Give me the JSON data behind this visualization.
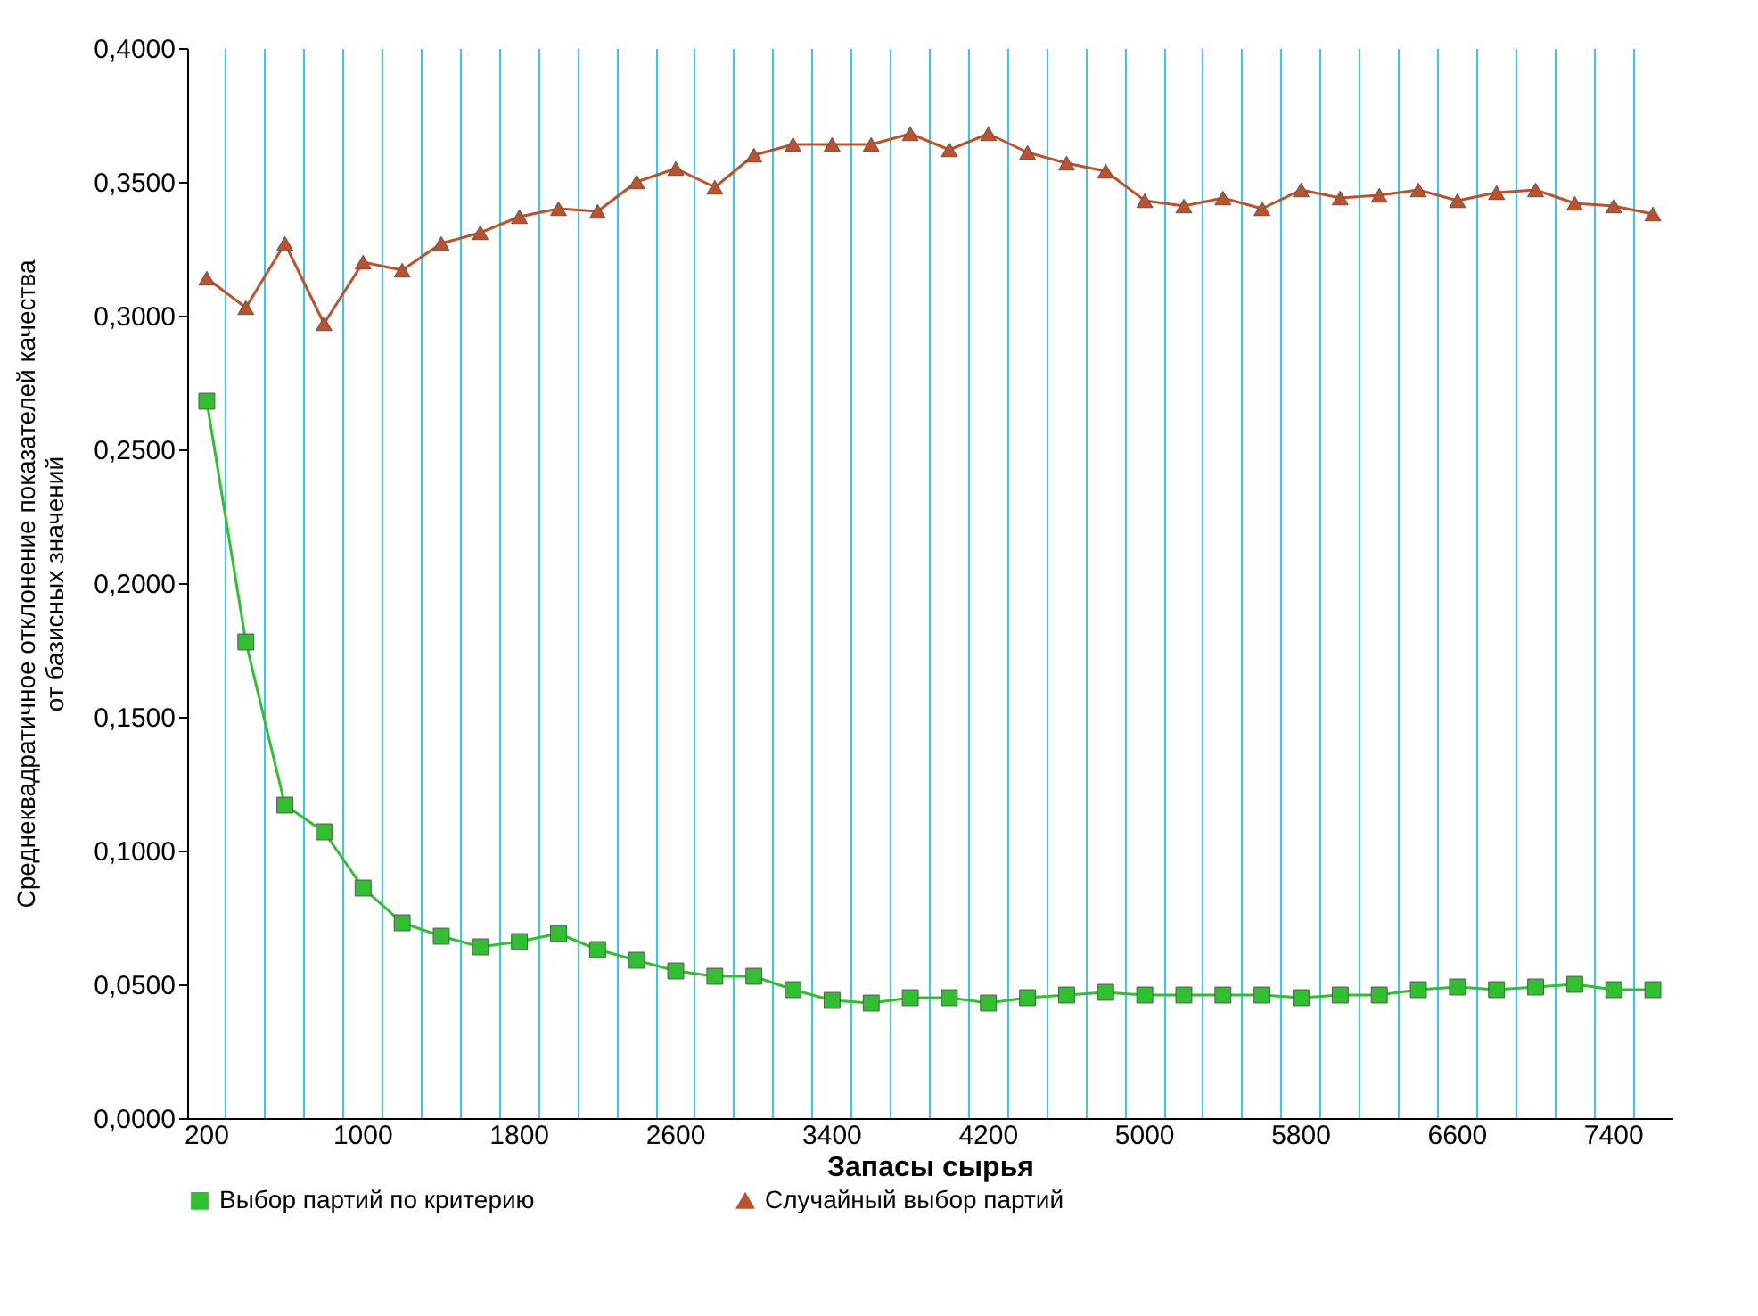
{
  "chart_data": {
    "type": "line",
    "xlabel": "Запасы сырья",
    "ylabel": "Среднеквадратичное отклонение показателей качества\nот базисных значений",
    "categories": [
      "200",
      null,
      null,
      null,
      "1000",
      null,
      null,
      null,
      "1800",
      null,
      null,
      null,
      "2600",
      null,
      null,
      null,
      "3400",
      null,
      null,
      null,
      "4200",
      null,
      null,
      null,
      "5000",
      null,
      null,
      null,
      "5800",
      null,
      null,
      null,
      "6600",
      null,
      null,
      null,
      "7400",
      null
    ],
    "ylim": [
      0,
      0.4
    ],
    "yticks": [
      {
        "value": 0,
        "label": "0,0000"
      },
      {
        "value": 0.05,
        "label": "0,0500"
      },
      {
        "value": 0.1,
        "label": "0,1000"
      },
      {
        "value": 0.15,
        "label": "0,1500"
      },
      {
        "value": 0.2,
        "label": "0,2000"
      },
      {
        "value": 0.25,
        "label": "0,2500"
      },
      {
        "value": 0.3,
        "label": "0,3000"
      },
      {
        "value": 0.35,
        "label": "0,3500"
      },
      {
        "value": 0.4,
        "label": "0,4000"
      }
    ],
    "grid": "x",
    "legend": "bottom",
    "line_style": "solid",
    "series": [
      {
        "name": "Выбор партий по критерию",
        "color": "#2fbf2f",
        "marker": "square",
        "values": [
          0.268,
          0.178,
          0.117,
          0.107,
          0.086,
          0.073,
          0.068,
          0.064,
          0.066,
          0.069,
          0.063,
          0.059,
          0.055,
          0.053,
          0.053,
          0.048,
          0.044,
          0.043,
          0.045,
          0.045,
          0.043,
          0.045,
          0.046,
          0.047,
          0.046,
          0.046,
          0.046,
          0.046,
          0.045,
          0.046,
          0.046,
          0.048,
          0.049,
          0.048,
          0.049,
          0.05,
          0.048,
          0.048
        ]
      },
      {
        "name": "Случайный выбор партий",
        "color": "#c0502a",
        "marker": "triangle",
        "values": [
          0.314,
          0.303,
          0.327,
          0.297,
          0.32,
          0.317,
          0.327,
          0.331,
          0.337,
          0.34,
          0.339,
          0.35,
          0.355,
          0.348,
          0.36,
          0.364,
          0.364,
          0.364,
          0.368,
          0.362,
          0.368,
          0.361,
          0.357,
          0.354,
          0.343,
          0.341,
          0.344,
          0.34,
          0.347,
          0.344,
          0.345,
          0.347,
          0.343,
          0.346,
          0.347,
          0.342,
          0.341,
          0.338
        ]
      }
    ]
  }
}
